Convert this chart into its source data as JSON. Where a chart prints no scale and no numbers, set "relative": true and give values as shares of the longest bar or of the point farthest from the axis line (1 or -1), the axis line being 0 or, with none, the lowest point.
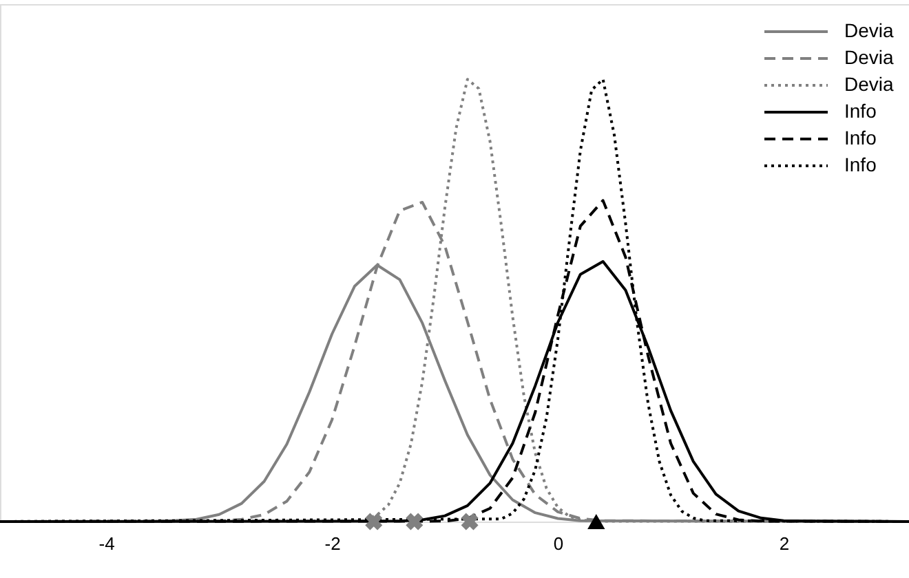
{
  "chart_data": {
    "type": "line",
    "relative": true,
    "xlim": [
      -4.94,
      3.11
    ],
    "xticks": [
      -4,
      -2,
      0,
      2
    ],
    "grid": false,
    "legend": "top right",
    "series": [
      {
        "name": "Devia",
        "color": "#808080",
        "line_style": "solid",
        "x": [
          -4.94,
          -3.6,
          -3.4,
          -3.2,
          -3.0,
          -2.8,
          -2.6,
          -2.4,
          -2.2,
          -2.0,
          -1.8,
          -1.6,
          -1.4,
          -1.2,
          -1.0,
          -0.8,
          -0.6,
          -0.4,
          -0.2,
          0.0,
          0.2,
          3.11
        ],
        "values": [
          0,
          0,
          0.002,
          0.005,
          0.016,
          0.041,
          0.091,
          0.175,
          0.293,
          0.424,
          0.532,
          0.58,
          0.547,
          0.449,
          0.319,
          0.196,
          0.105,
          0.049,
          0.02,
          0.007,
          0.002,
          0
        ]
      },
      {
        "name": "Devia",
        "color": "#808080",
        "line_style": "dashed",
        "x": [
          -4.94,
          -3.0,
          -2.8,
          -2.6,
          -2.4,
          -2.2,
          -2.0,
          -1.8,
          -1.6,
          -1.4,
          -1.2,
          -1.0,
          -0.8,
          -0.6,
          -0.4,
          -0.2,
          0.0,
          0.2,
          0.4,
          3.11
        ],
        "values": [
          0,
          0.001,
          0.005,
          0.016,
          0.046,
          0.112,
          0.23,
          0.397,
          0.577,
          0.703,
          0.722,
          0.623,
          0.452,
          0.276,
          0.141,
          0.061,
          0.022,
          0.007,
          0.002,
          0
        ]
      },
      {
        "name": "Devia",
        "color": "#808080",
        "line_style": "dotted",
        "x": [
          -4.94,
          -1.8,
          -1.7,
          -1.6,
          -1.5,
          -1.4,
          -1.3,
          -1.2,
          -1.1,
          -1.0,
          -0.9,
          -0.8,
          -0.7,
          -0.6,
          -0.5,
          -0.4,
          -0.3,
          -0.2,
          -0.1,
          0.0,
          0.1,
          0.2,
          0.3,
          3.11
        ],
        "values": [
          0,
          0.002,
          0.005,
          0.015,
          0.038,
          0.087,
          0.176,
          0.316,
          0.503,
          0.71,
          0.89,
          1.0,
          0.979,
          0.859,
          0.669,
          0.463,
          0.284,
          0.155,
          0.075,
          0.032,
          0.012,
          0.004,
          0.001,
          0
        ]
      },
      {
        "name": "Info",
        "color": "#000000",
        "line_style": "solid",
        "x": [
          -4.94,
          -1.4,
          -1.2,
          -1.0,
          -0.8,
          -0.6,
          -0.4,
          -0.2,
          0.0,
          0.2,
          0.4,
          0.6,
          0.8,
          1.0,
          1.2,
          1.4,
          1.6,
          1.8,
          2.0,
          2.2,
          3.11
        ],
        "values": [
          0,
          0.001,
          0.004,
          0.013,
          0.036,
          0.087,
          0.177,
          0.307,
          0.45,
          0.559,
          0.588,
          0.523,
          0.394,
          0.251,
          0.136,
          0.062,
          0.024,
          0.008,
          0.002,
          0.001,
          0
        ]
      },
      {
        "name": "Info",
        "color": "#000000",
        "line_style": "dashed",
        "x": [
          -4.94,
          -1.0,
          -0.8,
          -0.6,
          -0.4,
          -0.2,
          0.0,
          0.2,
          0.4,
          0.6,
          0.8,
          1.0,
          1.2,
          1.4,
          1.6,
          1.8,
          3.11
        ],
        "values": [
          0,
          0.001,
          0.007,
          0.03,
          0.099,
          0.247,
          0.466,
          0.668,
          0.726,
          0.598,
          0.374,
          0.177,
          0.064,
          0.017,
          0.004,
          0.001,
          0
        ]
      },
      {
        "name": "Info",
        "color": "#000000",
        "line_style": "dotted",
        "x": [
          -4.94,
          -0.5,
          -0.4,
          -0.3,
          -0.2,
          -0.1,
          0.0,
          0.1,
          0.2,
          0.3,
          0.4,
          0.5,
          0.6,
          0.7,
          0.8,
          0.9,
          1.0,
          1.1,
          1.2,
          1.3,
          3.11
        ],
        "values": [
          0,
          0.006,
          0.019,
          0.051,
          0.117,
          0.235,
          0.412,
          0.629,
          0.839,
          0.976,
          1.0,
          0.874,
          0.674,
          0.453,
          0.266,
          0.135,
          0.06,
          0.023,
          0.008,
          0.002,
          0
        ]
      },
      {
        "type": "scatter",
        "marker": "cross",
        "color": "#808080",
        "x": [
          -1.63,
          -1.27,
          -0.78
        ],
        "values": [
          0,
          0,
          0
        ]
      },
      {
        "type": "scatter",
        "marker": "triangle",
        "color": "#000000",
        "x": [
          0.34
        ],
        "values": [
          0
        ]
      }
    ]
  }
}
